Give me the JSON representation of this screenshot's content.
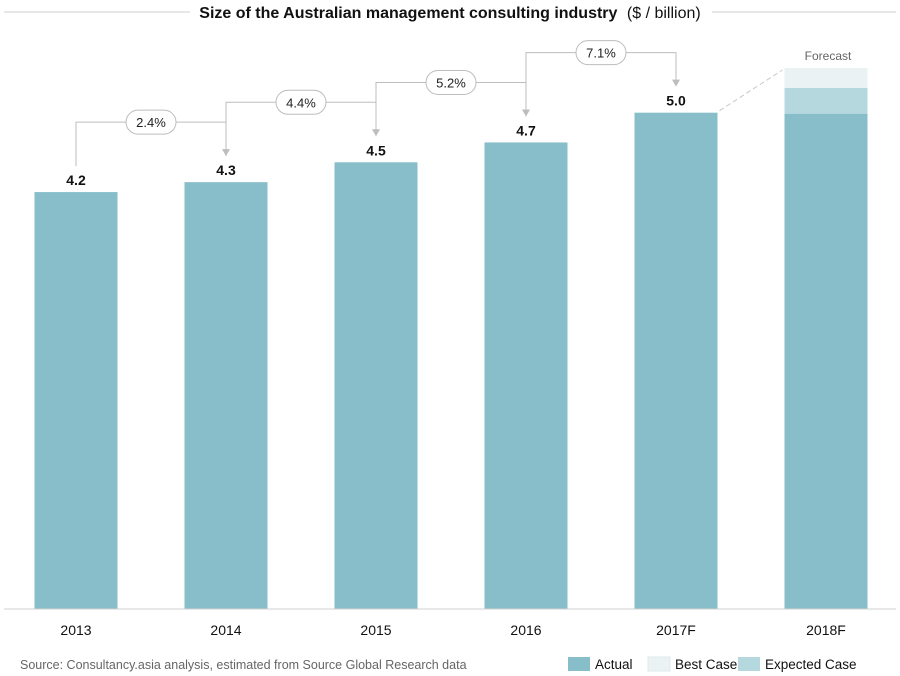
{
  "chart_data": {
    "type": "bar",
    "title_bold": "Size of the Australian management consulting industry",
    "title_unit": "($ / billion)",
    "categories": [
      "2013",
      "2014",
      "2015",
      "2016",
      "2017F",
      "2018F"
    ],
    "series": [
      {
        "name": "Actual",
        "values": [
          4.2,
          4.3,
          4.5,
          4.7,
          5.0,
          null
        ]
      },
      {
        "name": "Expected Case",
        "values": [
          null,
          null,
          null,
          null,
          null,
          5.25
        ]
      },
      {
        "name": "Best Case",
        "values": [
          null,
          null,
          null,
          null,
          null,
          5.45
        ]
      }
    ],
    "forecast_base": 4.99,
    "value_labels": [
      "4.2",
      "4.3",
      "4.5",
      "4.7",
      "5.0",
      ""
    ],
    "growth_rates": [
      {
        "from": "2013",
        "to": "2014",
        "label": "2.4%"
      },
      {
        "from": "2014",
        "to": "2015",
        "label": "4.4%"
      },
      {
        "from": "2015",
        "to": "2016",
        "label": "5.2%"
      },
      {
        "from": "2016",
        "to": "2017F",
        "label": "7.1%"
      }
    ],
    "forecast_label": "Forecast",
    "ylim": [
      0,
      5.45
    ],
    "xlabel": "",
    "ylabel": "",
    "grid": false,
    "legend": {
      "position": "bottom-right",
      "items": [
        "Actual",
        "Best Case",
        "Expected Case"
      ]
    },
    "colors": {
      "actual": "#87bec9",
      "best_case": "#eaf2f4",
      "expected_case": "#b5d8df"
    }
  },
  "source": "Source: Consultancy.asia analysis, estimated from Source Global Research data"
}
